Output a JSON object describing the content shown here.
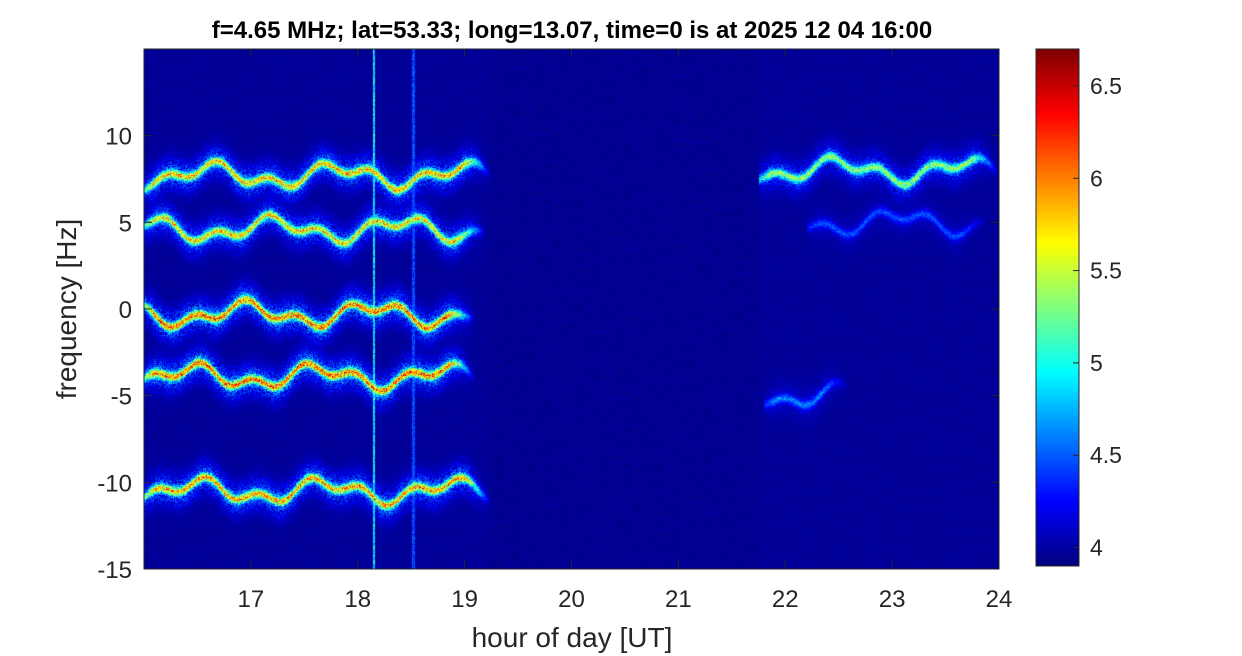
{
  "chart_data": {
    "type": "heatmap",
    "title": "f=4.65 MHz;  lat=53.33; long=13.07, time=0 is at 2025 12 04 16:00",
    "xlabel": "hour of day [UT]",
    "ylabel": "frequency [Hz]",
    "xlim": [
      16,
      24
    ],
    "ylim": [
      -15,
      15
    ],
    "xticks": [
      17,
      18,
      19,
      20,
      21,
      22,
      23,
      24
    ],
    "yticks": [
      -15,
      -10,
      -5,
      0,
      5,
      10
    ],
    "colorbar": {
      "clim": [
        3.9,
        6.7
      ],
      "ticks": [
        4,
        4.5,
        5,
        5.5,
        6,
        6.5
      ],
      "colormap": "jet"
    },
    "background_level": 3.95,
    "traces": [
      {
        "center_hz": 7.7,
        "x_start": 16.0,
        "x_end": 19.25,
        "peak": 6.3
      },
      {
        "center_hz": 4.6,
        "x_start": 16.0,
        "x_end": 19.2,
        "peak": 6.2
      },
      {
        "center_hz": -0.3,
        "x_start": 16.0,
        "x_end": 19.1,
        "peak": 6.6
      },
      {
        "center_hz": -3.9,
        "x_start": 16.0,
        "x_end": 19.1,
        "peak": 6.6
      },
      {
        "center_hz": -10.5,
        "x_start": 16.0,
        "x_end": 19.25,
        "peak": 6.4
      },
      {
        "center_hz": 8.0,
        "x_start": 21.75,
        "x_end": 24.0,
        "peak": 5.8
      },
      {
        "center_hz": 5.0,
        "x_start": 22.2,
        "x_end": 23.9,
        "peak": 4.6
      },
      {
        "center_hz": -5.0,
        "x_start": 21.8,
        "x_end": 22.6,
        "peak": 4.8
      }
    ],
    "vertical_lines": [
      {
        "x": 18.15,
        "peak": 5.2
      },
      {
        "x": 18.52,
        "peak": 4.6
      }
    ]
  }
}
